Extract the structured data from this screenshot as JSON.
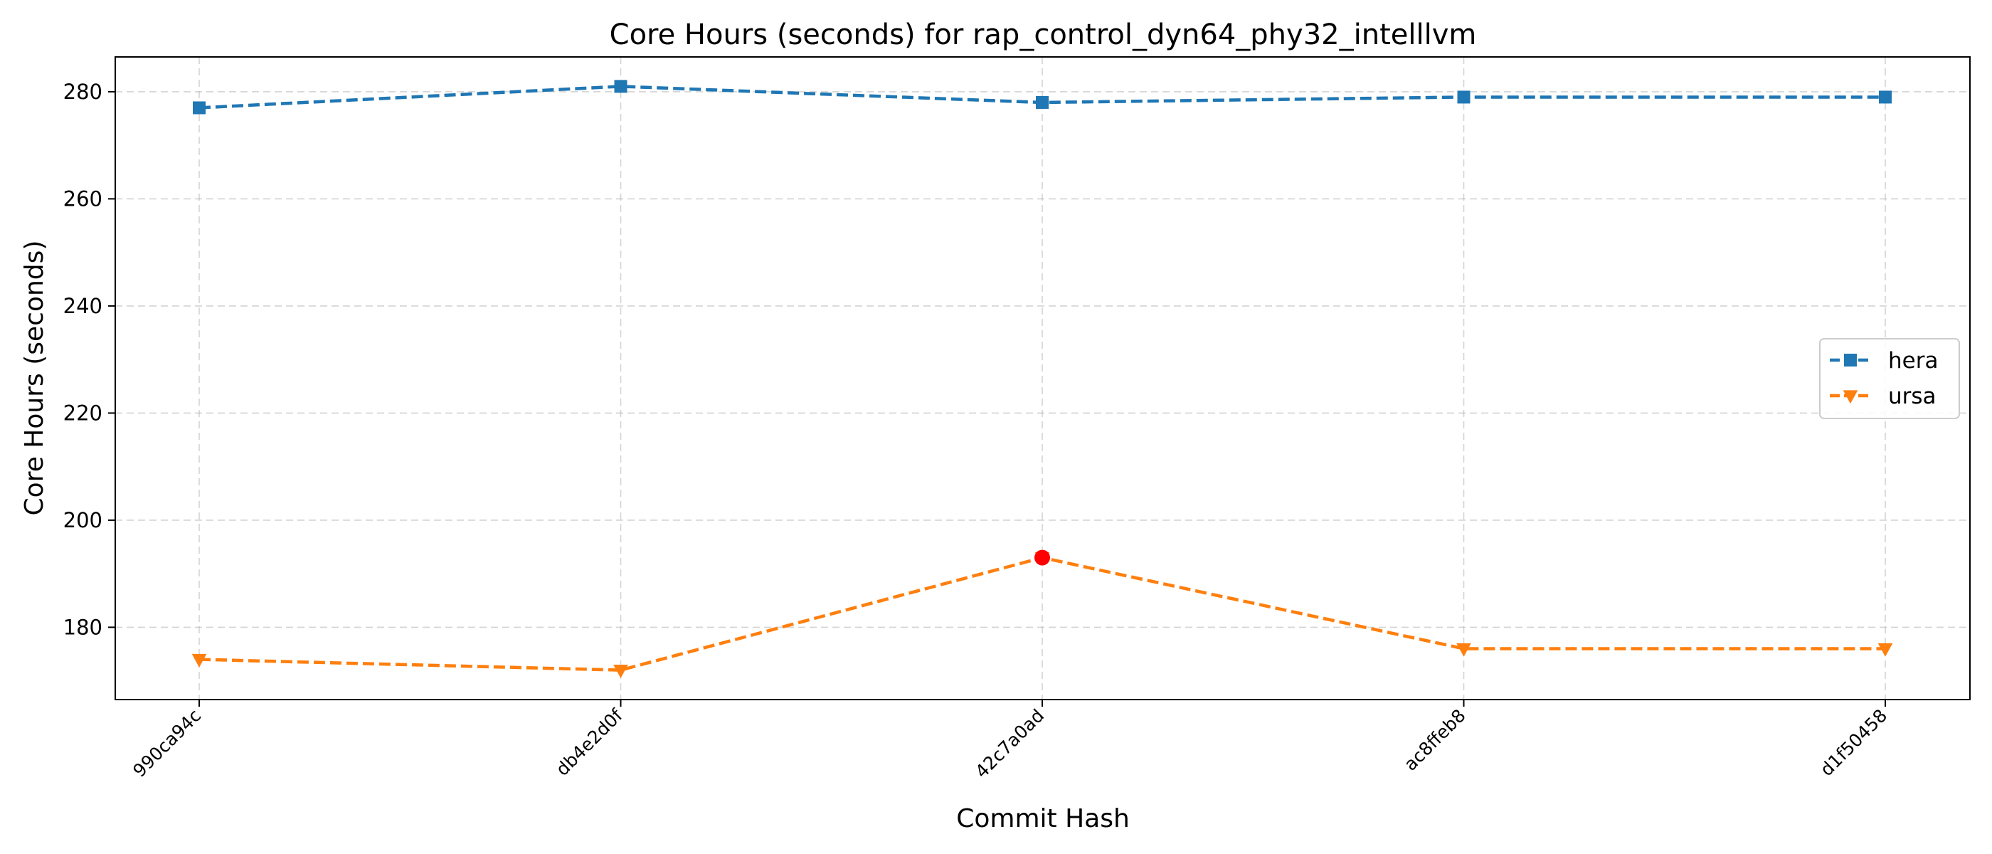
{
  "chart_data": {
    "type": "line",
    "title": "Core Hours (seconds) for rap_control_dyn64_phy32_intelllvm",
    "xlabel": "Commit Hash",
    "ylabel": "Core Hours (seconds)",
    "categories": [
      "990ca94c",
      "db4e2d0f",
      "42c7a0ad",
      "ac8ffeb8",
      "d1f50458"
    ],
    "ylim": [
      166.5,
      286.5
    ],
    "yticks": [
      180,
      200,
      220,
      240,
      260,
      280
    ],
    "grid": true,
    "legend_position": "center-right",
    "series": [
      {
        "name": "hera",
        "color": "#1f77b4",
        "marker": "square",
        "line_style": "dashed",
        "values": [
          277,
          281,
          278,
          279,
          279
        ]
      },
      {
        "name": "ursa",
        "color": "#ff7f0e",
        "marker": "triangle-down",
        "line_style": "dashed",
        "values": [
          174,
          172,
          193,
          176,
          176
        ]
      }
    ],
    "highlights": [
      {
        "series": "ursa",
        "category": "42c7a0ad",
        "value": 193,
        "color": "#ff0000",
        "marker": "circle"
      }
    ]
  }
}
